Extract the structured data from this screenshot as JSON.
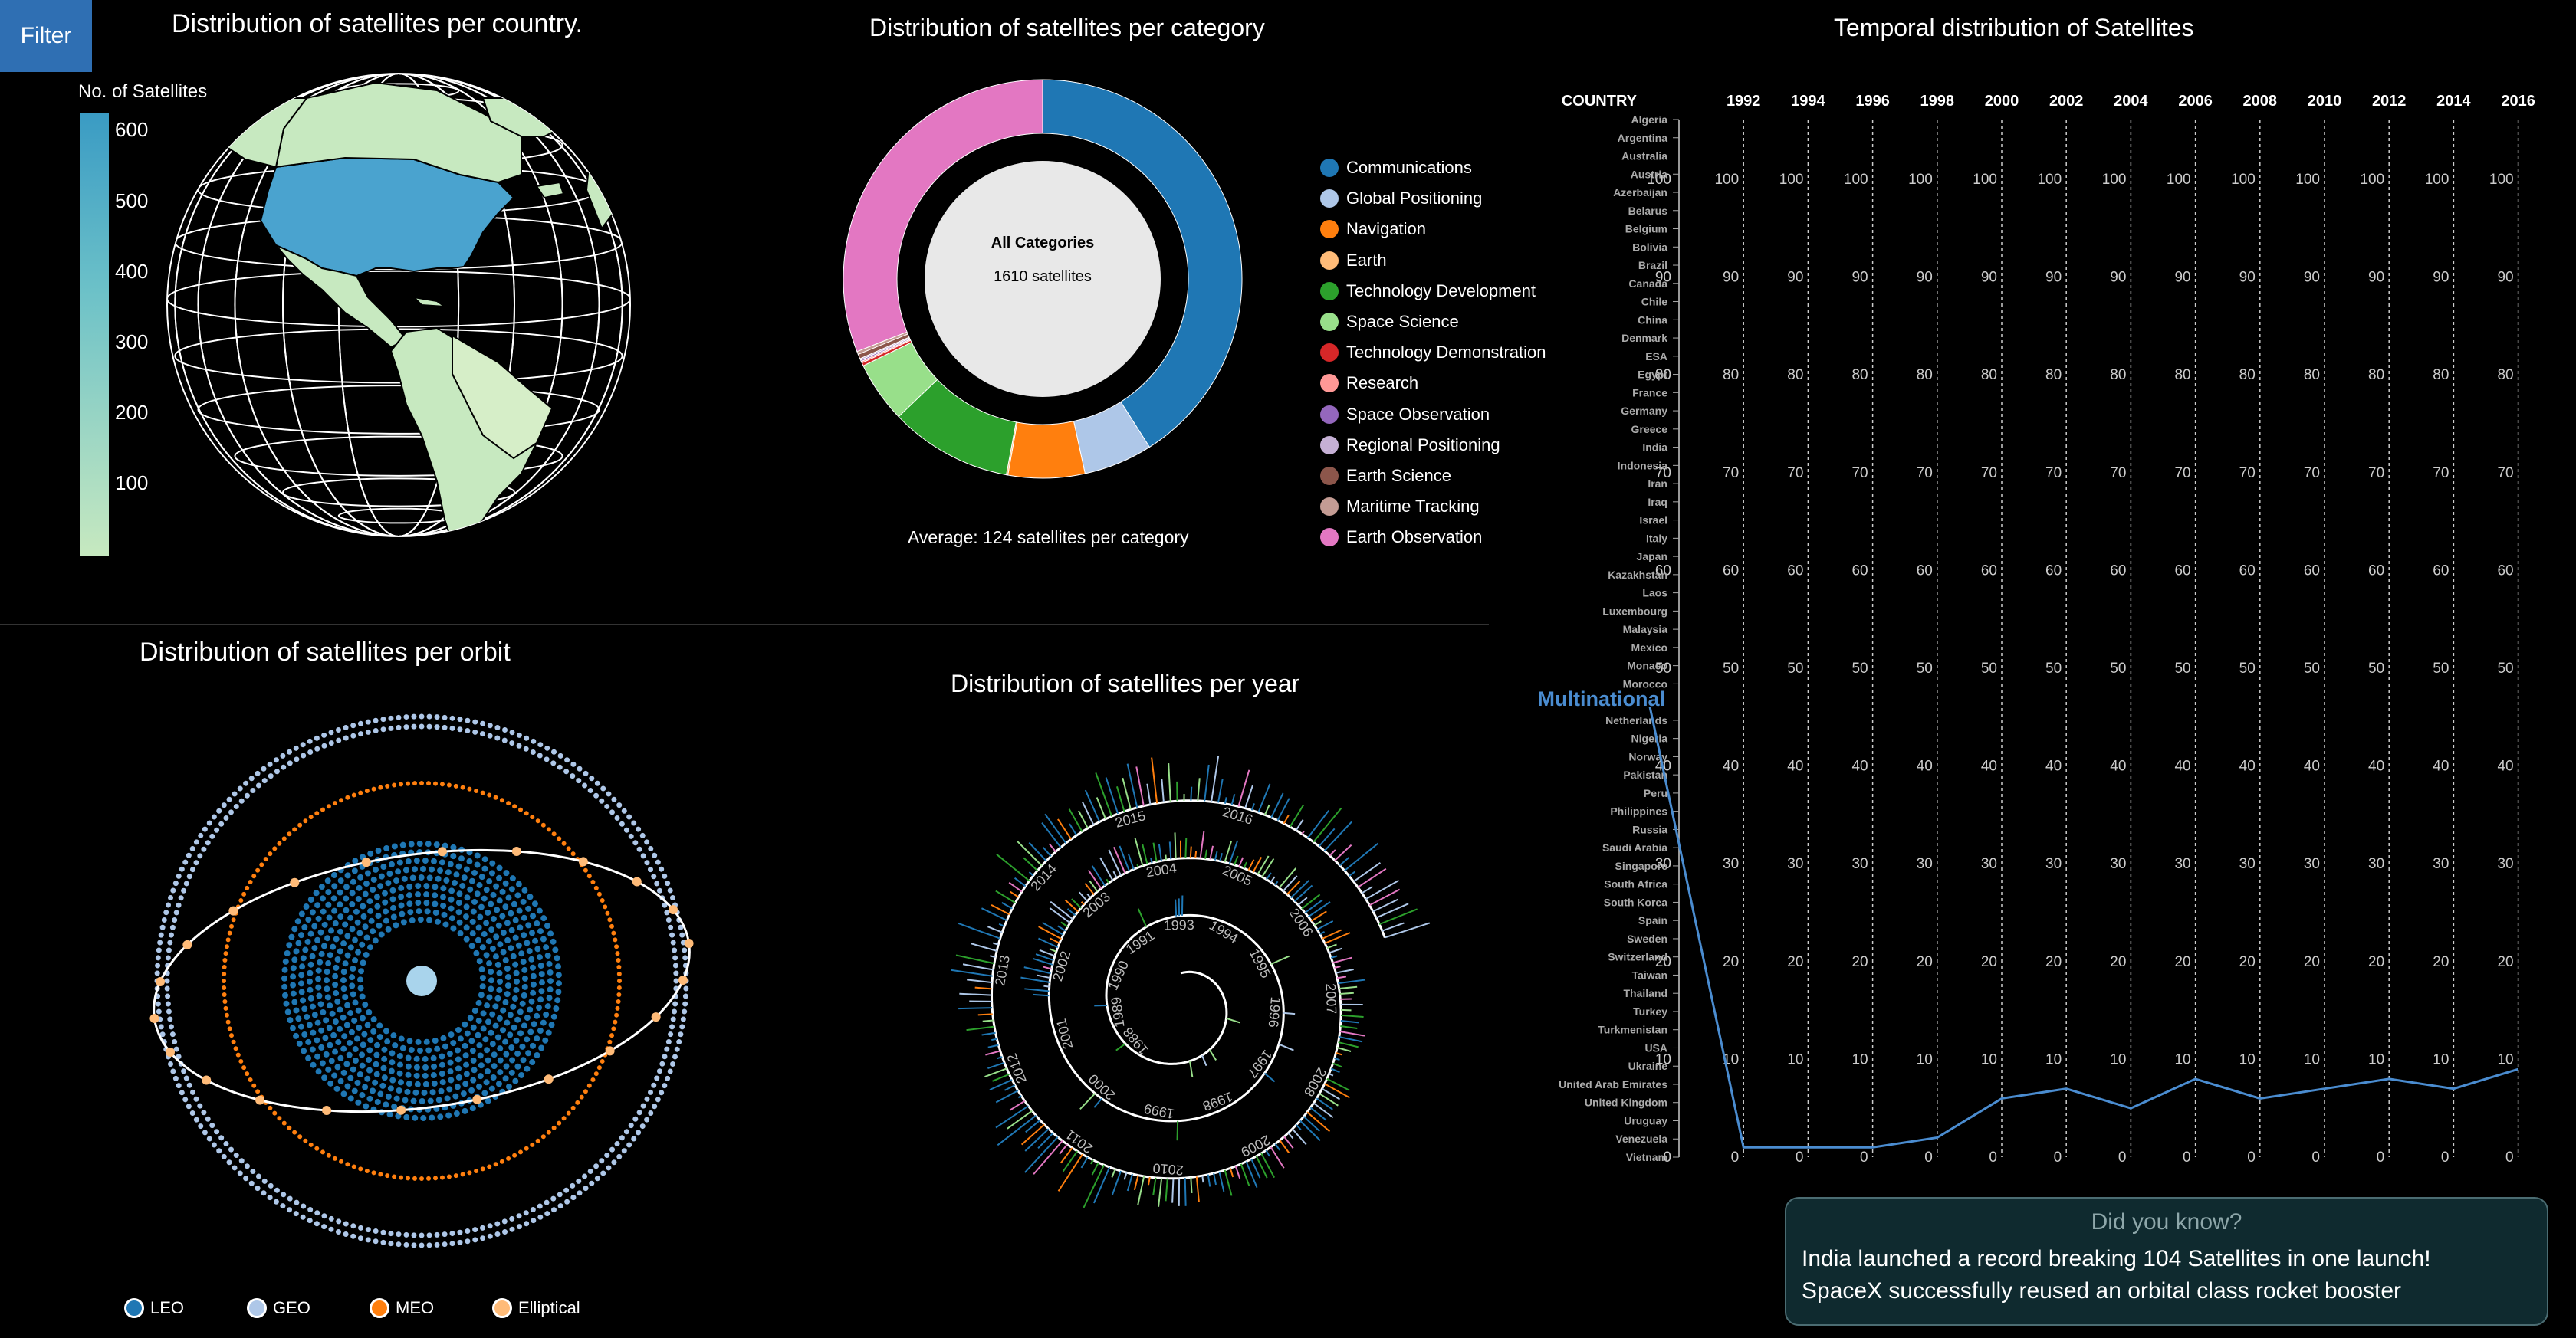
{
  "filter_label": "Filter",
  "world": {
    "title": "Distribution of satellites per country.",
    "colorbar_label": "No. of Satellites",
    "colorbar_ticks": [
      "600",
      "500",
      "400",
      "300",
      "200",
      "100"
    ],
    "colorbar_colors": [
      "#3a9bc4",
      "#c7e9c0"
    ]
  },
  "category": {
    "title": "Distribution of satellites per category",
    "center_title": "All Categories",
    "center_sub": "1610 satellites",
    "average": "Average: 124 satellites per category"
  },
  "orbit": {
    "title": "Distribution of satellites per orbit",
    "legend": [
      {
        "label": "LEO",
        "color": "#1f77b4"
      },
      {
        "label": "GEO",
        "color": "#aec7e8"
      },
      {
        "label": "MEO",
        "color": "#ff7f0e"
      },
      {
        "label": "Elliptical",
        "color": "#ffbb78"
      }
    ]
  },
  "year": {
    "title": "Distribution of satellites per year"
  },
  "temporal": {
    "title": "Temporal distribution of Satellites",
    "highlight": "Multinational"
  },
  "didyouknow": {
    "title": "Did you know?",
    "line1": "India launched a record breaking 104 Satellites in one launch!",
    "line2": "SpaceX successfully reused an orbital class rocket booster"
  },
  "chart_data": [
    {
      "type": "pie",
      "title": "Distribution of satellites per category",
      "categories": [
        "Communications",
        "Global Positioning",
        "Navigation",
        "Earth",
        "Technology Development",
        "Space Science",
        "Technology Demonstration",
        "Research",
        "Space Observation",
        "Regional Positioning",
        "Earth Science",
        "Maritime Tracking",
        "Earth Observation"
      ],
      "values": [
        660,
        90,
        100,
        2,
        160,
        80,
        4,
        2,
        2,
        2,
        6,
        4,
        498
      ],
      "colors": [
        "#1f77b4",
        "#aec7e8",
        "#ff7f0e",
        "#ffbb78",
        "#2ca02c",
        "#98df8a",
        "#d62728",
        "#ff9896",
        "#9467bd",
        "#c5b0d5",
        "#8c564b",
        "#c49c94",
        "#e377c2"
      ]
    },
    {
      "type": "line",
      "title": "Temporal distribution of Satellites",
      "xlabel": "COUNTRY",
      "x": [
        "1990",
        "1992",
        "1994",
        "1996",
        "1998",
        "2000",
        "2002",
        "2004",
        "2006",
        "2008",
        "2010",
        "2012",
        "2014",
        "2016"
      ],
      "year_ticks": [
        "1992",
        "1994",
        "1996",
        "1998",
        "2000",
        "2002",
        "2004",
        "2006",
        "2008",
        "2010",
        "2012",
        "2014",
        "2016"
      ],
      "countries": [
        "Algeria",
        "Argentina",
        "Australia",
        "Austria",
        "Azerbaijan",
        "Belarus",
        "Belgium",
        "Bolivia",
        "Brazil",
        "Canada",
        "Chile",
        "China",
        "Denmark",
        "ESA",
        "Egypt",
        "France",
        "Germany",
        "Greece",
        "India",
        "Indonesia",
        "Iran",
        "Iraq",
        "Israel",
        "Italy",
        "Japan",
        "Kazakhstan",
        "Laos",
        "Luxembourg",
        "Malaysia",
        "Mexico",
        "Monaco",
        "Morocco",
        "Multinational",
        "Netherlands",
        "Nigeria",
        "Norway",
        "Pakistan",
        "Peru",
        "Philippines",
        "Russia",
        "Saudi Arabia",
        "Singapore",
        "South Africa",
        "South Korea",
        "Spain",
        "Sweden",
        "Switzerland",
        "Taiwan",
        "Thailand",
        "Turkey",
        "Turkmenistan",
        "USA",
        "Ukraine",
        "United Arab Emirates",
        "United Kingdom",
        "Uruguay",
        "Venezuela",
        "Vietnam"
      ],
      "yticks": [
        0,
        10,
        20,
        30,
        40,
        50,
        60,
        70,
        80,
        90,
        100
      ],
      "ylim": [
        0,
        100
      ],
      "series": [
        {
          "name": "Multinational",
          "values": [
            47,
            1,
            1,
            1,
            2,
            6,
            7,
            5,
            8,
            6,
            7,
            8,
            7,
            9
          ]
        }
      ]
    }
  ]
}
